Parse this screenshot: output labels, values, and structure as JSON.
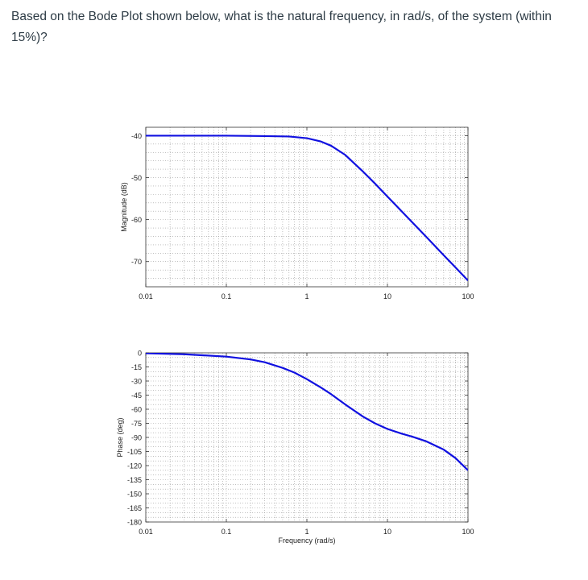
{
  "question": {
    "text": "Based on the Bode Plot shown below, what is the natural frequency, in rad/s, of the system (within 15%)?"
  },
  "colors": {
    "curve": "#1010e0",
    "grid": "#9a9a9a",
    "text": "#2d3b45"
  },
  "chart_data": [
    {
      "type": "line",
      "title": "",
      "xlabel": "",
      "ylabel": "Magnitude (dB)",
      "xscale": "log",
      "xlim": [
        0.01,
        100
      ],
      "ylim": [
        -76,
        -38
      ],
      "grid": true,
      "x_ticks": [
        "0.01",
        "0.1",
        "1",
        "10",
        "100"
      ],
      "y_ticks": [
        {
          "value": -40,
          "label": "-40"
        },
        {
          "value": -50,
          "label": "-50"
        },
        {
          "value": -60,
          "label": "-60"
        },
        {
          "value": -70,
          "label": "-70"
        }
      ],
      "series": [
        {
          "x": [
            0.01,
            0.03,
            0.1,
            0.3,
            0.6,
            1,
            1.5,
            2,
            3,
            5,
            7,
            10,
            15,
            20,
            30,
            50,
            70,
            100
          ],
          "y": [
            -40.0,
            -40.0,
            -40.0,
            -40.1,
            -40.2,
            -40.6,
            -41.4,
            -42.4,
            -44.6,
            -48.6,
            -51.4,
            -54.5,
            -58.0,
            -60.5,
            -64.0,
            -68.5,
            -71.4,
            -74.5
          ]
        }
      ]
    },
    {
      "type": "line",
      "title": "",
      "xlabel": "Frequency (rad/s)",
      "ylabel": "Phase (deg)",
      "xscale": "log",
      "xlim": [
        0.01,
        100
      ],
      "ylim": [
        -180,
        0
      ],
      "grid": true,
      "x_ticks": [
        "0.01",
        "0.1",
        "1",
        "10",
        "100"
      ],
      "y_ticks": [
        {
          "value": 0,
          "label": "0"
        },
        {
          "value": -15,
          "label": "-15"
        },
        {
          "value": -30,
          "label": "-30"
        },
        {
          "value": -45,
          "label": "-45"
        },
        {
          "value": -60,
          "label": "-60"
        },
        {
          "value": -75,
          "label": "-75"
        },
        {
          "value": -90,
          "label": "-90"
        },
        {
          "value": -105,
          "label": "-105"
        },
        {
          "value": -120,
          "label": "-120"
        },
        {
          "value": -135,
          "label": "-135"
        },
        {
          "value": -150,
          "label": "-150"
        },
        {
          "value": -165,
          "label": "-165"
        },
        {
          "value": -180,
          "label": "-180"
        }
      ],
      "series": [
        {
          "x": [
            0.01,
            0.03,
            0.1,
            0.2,
            0.3,
            0.5,
            0.7,
            1,
            1.5,
            2,
            3,
            5,
            7,
            10,
            15,
            20,
            30,
            50,
            70,
            100
          ],
          "y": [
            -0.5,
            -1.5,
            -4,
            -7,
            -10,
            -16,
            -21,
            -28,
            -37,
            -44,
            -55,
            -68,
            -75,
            -81,
            -86,
            -89,
            -94,
            -103,
            -112,
            -125
          ]
        }
      ]
    }
  ]
}
